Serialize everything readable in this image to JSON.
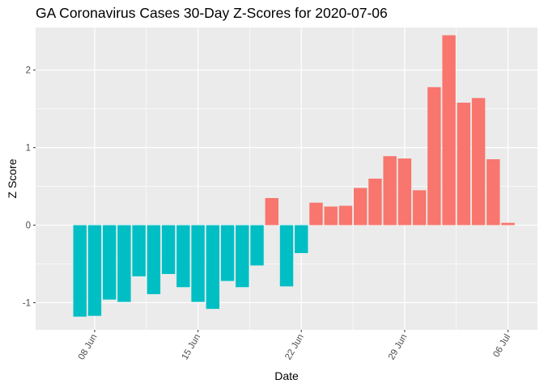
{
  "chart_data": {
    "type": "bar",
    "title": "GA Coronavirus Cases 30-Day Z-Scores for 2020-07-06",
    "xlabel": "Date",
    "ylabel": "Z Score",
    "x_ticks": [
      "08 Jun",
      "15 Jun",
      "22 Jun",
      "29 Jun",
      "06 Jul"
    ],
    "y_ticks": [
      -1,
      0,
      1,
      2
    ],
    "ylim": [
      -1.35,
      2.55
    ],
    "xlim": [
      "2020-06-04",
      "2020-07-08"
    ],
    "grid": true,
    "colors": {
      "positive": "#F8766D",
      "negative": "#00BFC4",
      "panel": "#EBEBEB",
      "grid": "#ffffff"
    },
    "dates": [
      "2020-06-07",
      "2020-06-08",
      "2020-06-09",
      "2020-06-10",
      "2020-06-11",
      "2020-06-12",
      "2020-06-13",
      "2020-06-14",
      "2020-06-15",
      "2020-06-16",
      "2020-06-17",
      "2020-06-18",
      "2020-06-19",
      "2020-06-20",
      "2020-06-21",
      "2020-06-22",
      "2020-06-23",
      "2020-06-24",
      "2020-06-25",
      "2020-06-26",
      "2020-06-27",
      "2020-06-28",
      "2020-06-29",
      "2020-06-30",
      "2020-07-01",
      "2020-07-02",
      "2020-07-03",
      "2020-07-04",
      "2020-07-05",
      "2020-07-06"
    ],
    "values": [
      -1.18,
      -1.17,
      -0.96,
      -0.99,
      -0.66,
      -0.89,
      -0.63,
      -0.8,
      -0.99,
      -1.08,
      -0.72,
      -0.8,
      -0.52,
      0.35,
      -0.79,
      -0.36,
      0.29,
      0.24,
      0.25,
      0.48,
      0.6,
      0.89,
      0.86,
      0.45,
      1.78,
      2.45,
      1.58,
      1.64,
      0.85,
      0.03
    ]
  }
}
